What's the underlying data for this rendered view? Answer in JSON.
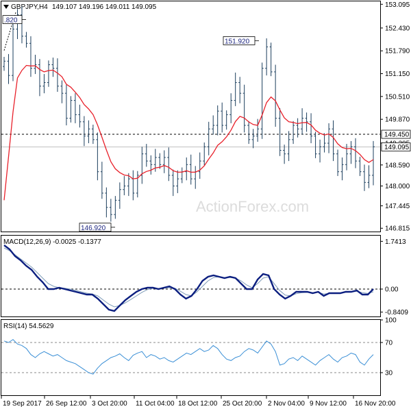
{
  "header": {
    "symbol": "GBPJPY,H4",
    "ohlc": "149.107 149.196 149.011 149.095"
  },
  "watermark": "ActionForex.com",
  "colors": {
    "candle": "#1a3d5c",
    "ema": "#e8202a",
    "macd": "#0c1f80",
    "signal": "#7e9bb8",
    "rsi": "#3a8fd6",
    "current_price_box": "#ffffff",
    "level_box": "#ffffff"
  },
  "chart_data": [
    {
      "type": "candlestick",
      "panel": "price",
      "x_tick_labels": [
        "19 Sep 2017",
        "26 Sep 12:00",
        "3 Oct 20:00",
        "11 Oct 04:00",
        "18 Oct 12:00",
        "25 Oct 20:00",
        "2 Nov 04:00",
        "9 Nov 12:00",
        "16 Nov 20:00"
      ],
      "y_ticks": [
        "153.095",
        "152.430",
        "151.790",
        "151.150",
        "150.510",
        "149.870",
        "149.205",
        "148.590",
        "148.000",
        "147.445",
        "146.815"
      ],
      "ylim": [
        146.8,
        153.1
      ],
      "annotations": [
        {
          "label": ".820",
          "value": 152.82
        },
        {
          "label": "151.920",
          "value": 151.92
        },
        {
          "label": "146.920",
          "value": 146.92
        }
      ],
      "levels": [
        {
          "label": "149.450",
          "value": 149.45,
          "style": "dashed"
        },
        {
          "label": "149.095",
          "value": 149.095,
          "style": "solid",
          "current": true
        }
      ],
      "close_path": [
        151.5,
        151.1,
        152.4,
        152.8,
        152.2,
        152.0,
        151.3,
        151.4,
        150.8,
        150.9,
        151.4,
        151.3,
        150.8,
        150.6,
        149.9,
        150.4,
        150.0,
        149.8,
        149.4,
        149.6,
        149.3,
        148.4,
        147.8,
        147.4,
        147.2,
        147.6,
        147.9,
        148.0,
        148.2,
        147.8,
        148.3,
        148.9,
        148.7,
        148.6,
        148.8,
        148.6,
        148.8,
        148.3,
        148.0,
        148.2,
        148.4,
        148.6,
        148.2,
        148.4,
        148.7,
        149.1,
        149.6,
        149.7,
        150.1,
        149.7,
        150.0,
        150.4,
        150.9,
        150.6,
        149.7,
        149.3,
        149.4,
        149.6,
        151.3,
        151.9,
        151.2,
        149.9,
        149.0,
        148.9,
        149.3,
        149.7,
        149.6,
        149.9,
        149.8,
        149.4,
        148.9,
        149.1,
        149.2,
        149.6,
        148.9,
        148.4,
        148.6,
        148.9,
        149.1,
        148.7,
        148.4,
        148.1,
        148.3,
        149.1
      ]
    },
    {
      "type": "line",
      "panel": "macd",
      "label": "MACD(12,26,9) -0.0025 -0.1377",
      "y_ticks": [
        "1.7413",
        "0.00",
        "-0.8409"
      ],
      "ylim": [
        -0.95,
        1.8
      ],
      "series": [
        {
          "values": [
            1.6,
            1.45,
            1.2,
            1.05,
            0.85,
            0.7,
            0.45,
            0.25,
            0.0,
            0.0,
            0.05,
            0.0,
            -0.05,
            -0.1,
            -0.15,
            -0.2,
            -0.2,
            -0.35,
            -0.55,
            -0.75,
            -0.8,
            -0.6,
            -0.4,
            -0.25,
            -0.1,
            0.0,
            0.05,
            0.05,
            0.0,
            0.05,
            0.1,
            0.0,
            -0.2,
            -0.35,
            -0.25,
            0.0,
            0.3,
            0.45,
            0.5,
            0.45,
            0.4,
            0.45,
            0.4,
            0.2,
            0.0,
            0.0,
            0.35,
            0.55,
            0.5,
            0.0,
            -0.2,
            -0.35,
            -0.25,
            -0.1,
            -0.1,
            -0.1,
            -0.15,
            -0.1,
            -0.25,
            -0.15,
            -0.15,
            -0.15,
            -0.1,
            -0.1,
            -0.05,
            -0.2,
            -0.2,
            0.0
          ]
        },
        {
          "values": [
            1.5,
            1.4,
            1.25,
            1.1,
            0.95,
            0.8,
            0.6,
            0.4,
            0.2,
            0.1,
            0.05,
            0.03,
            0.0,
            -0.05,
            -0.1,
            -0.15,
            -0.18,
            -0.25,
            -0.4,
            -0.55,
            -0.65,
            -0.6,
            -0.5,
            -0.38,
            -0.25,
            -0.12,
            -0.02,
            0.03,
            0.02,
            0.03,
            0.05,
            0.03,
            -0.08,
            -0.2,
            -0.25,
            -0.1,
            0.1,
            0.3,
            0.42,
            0.45,
            0.42,
            0.42,
            0.4,
            0.3,
            0.15,
            0.05,
            0.2,
            0.4,
            0.45,
            0.2,
            -0.05,
            -0.22,
            -0.25,
            -0.17,
            -0.13,
            -0.12,
            -0.13,
            -0.12,
            -0.18,
            -0.16,
            -0.15,
            -0.15,
            -0.12,
            -0.11,
            -0.08,
            -0.13,
            -0.16,
            -0.1
          ]
        }
      ]
    },
    {
      "type": "line",
      "panel": "rsi",
      "label": "RSI(14) 54.5629",
      "y_ticks": [
        "100",
        "70",
        "30",
        "0"
      ],
      "ylim": [
        0,
        100
      ],
      "series": [
        {
          "values": [
            72,
            70,
            74,
            68,
            66,
            62,
            54,
            50,
            55,
            58,
            55,
            52,
            54,
            50,
            46,
            44,
            42,
            38,
            34,
            30,
            28,
            36,
            42,
            46,
            50,
            52,
            55,
            50,
            46,
            53,
            56,
            58,
            50,
            54,
            52,
            48,
            50,
            46,
            44,
            48,
            52,
            56,
            54,
            58,
            62,
            58,
            60,
            66,
            62,
            54,
            48,
            46,
            50,
            52,
            58,
            62,
            60,
            56,
            64,
            72,
            68,
            58,
            40,
            42,
            48,
            50,
            46,
            52,
            48,
            44,
            40,
            46,
            50,
            54,
            48,
            44,
            50,
            52,
            56,
            54,
            44,
            40,
            48,
            54
          ]
        }
      ]
    }
  ]
}
